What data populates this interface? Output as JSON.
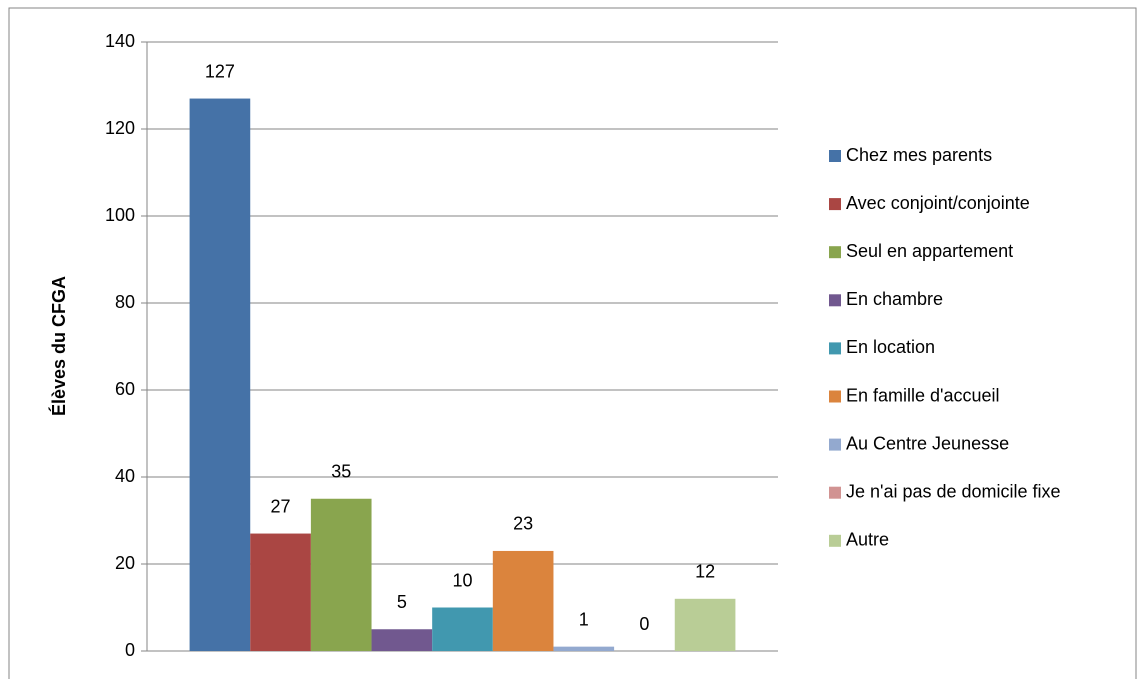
{
  "chart_data": {
    "type": "bar",
    "ylabel": "Élèves du CFGA",
    "categories": [
      null
    ],
    "series": [
      {
        "name": "Chez mes parents",
        "color": "#4572a7",
        "values": [
          127
        ]
      },
      {
        "name": "Avec conjoint/conjointe",
        "color": "#aa4643",
        "values": [
          27
        ]
      },
      {
        "name": "Seul en appartement",
        "color": "#89a54e",
        "values": [
          35
        ]
      },
      {
        "name": "En chambre",
        "color": "#71588f",
        "values": [
          5
        ]
      },
      {
        "name": "En location",
        "color": "#4198af",
        "values": [
          10
        ]
      },
      {
        "name": "En famille d'accueil",
        "color": "#db843d",
        "values": [
          23
        ]
      },
      {
        "name": "Au Centre Jeunesse",
        "color": "#93a9cf",
        "values": [
          1
        ]
      },
      {
        "name": "Je n'ai pas de domicile fixe",
        "color": "#d19392",
        "values": [
          0
        ]
      },
      {
        "name": "Autre",
        "color": "#b9cd96",
        "values": [
          12
        ]
      }
    ],
    "ylim": [
      0,
      140
    ],
    "yticks": [
      0,
      20,
      40,
      60,
      80,
      100,
      120,
      140
    ],
    "grid": true,
    "legend": "right",
    "data_labels": true
  }
}
